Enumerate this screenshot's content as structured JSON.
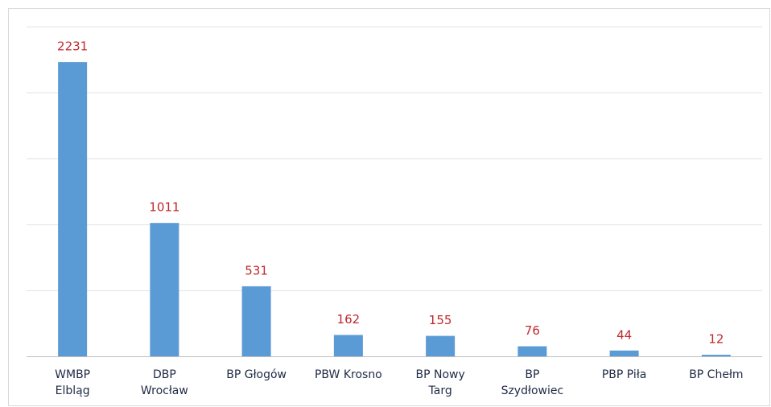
{
  "chart_data": {
    "type": "bar",
    "categories": [
      "WMBP\nElbląg",
      "DBP\nWrocław",
      "BP Głogów",
      "PBW Krosno",
      "BP Nowy\nTarg",
      "BP\nSzydłowiec",
      "PBP Piła",
      "BP Chełm"
    ],
    "values": [
      2231,
      1011,
      531,
      162,
      155,
      76,
      44,
      12
    ],
    "color": "#5b9bd5",
    "value_label_color": "#c0282d",
    "ylim": [
      0,
      2500
    ],
    "yticks": [
      0,
      500,
      1000,
      1500,
      2000,
      2500
    ],
    "grid": true
  }
}
